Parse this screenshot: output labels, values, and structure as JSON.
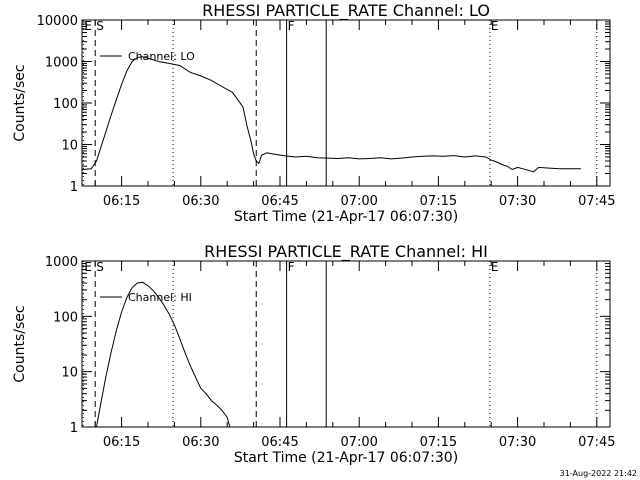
{
  "chart_data": [
    {
      "type": "line",
      "title": "RHESSI PARTICLE_RATE Channel: LO",
      "xlabel": "Start Time (21-Apr-17 06:07:30)",
      "ylabel": "Counts/sec",
      "yscale": "log",
      "ylim": [
        1,
        10000
      ],
      "ytick_labels": [
        "1",
        "10",
        "100",
        "1000",
        "10000"
      ],
      "xlim": [
        "06:07:30",
        "07:47:30"
      ],
      "xtick_labels": [
        "06:15",
        "06:30",
        "06:45",
        "07:00",
        "07:15",
        "07:30",
        "07:45"
      ],
      "legend": {
        "entry": "Channel: LO",
        "placement": "top-left"
      },
      "event_markers": [
        {
          "label": "E",
          "time": "06:07:45",
          "style": "dotted"
        },
        {
          "label": "S",
          "time": "06:10:00",
          "style": "dashed"
        },
        {
          "label": "",
          "time": "06:24:45",
          "style": "dotted"
        },
        {
          "label": "",
          "time": "06:40:30",
          "style": "dashed"
        },
        {
          "label": "F",
          "time": "06:46:15",
          "style": "solid"
        },
        {
          "label": "",
          "time": "06:53:45",
          "style": "solid"
        },
        {
          "label": "E",
          "time": "07:24:45",
          "style": "dotted"
        },
        {
          "label": "",
          "time": "07:45:00",
          "style": "dotted"
        }
      ],
      "series": [
        {
          "name": "Channel: LO",
          "x": [
            "06:07:30",
            "06:09:15",
            "06:10:15",
            "06:11:00",
            "06:12:00",
            "06:13:00",
            "06:14:00",
            "06:15:00",
            "06:16:00",
            "06:17:00",
            "06:18:00",
            "06:19:00",
            "06:20:00",
            "06:21:00",
            "06:22:00",
            "06:24:00",
            "06:26:00",
            "06:28:00",
            "06:30:00",
            "06:32:00",
            "06:34:00",
            "06:36:00",
            "06:38:00",
            "06:38:45",
            "06:39:30",
            "06:40:00",
            "06:40:30",
            "06:41:00",
            "06:41:30",
            "06:42:30",
            "06:44:00",
            "06:46:00",
            "06:48:00",
            "06:50:00",
            "06:52:00",
            "06:54:00",
            "06:56:00",
            "06:58:00",
            "07:00:00",
            "07:02:00",
            "07:04:00",
            "07:06:00",
            "07:08:00",
            "07:10:00",
            "07:12:00",
            "07:14:00",
            "07:16:00",
            "07:18:00",
            "07:20:00",
            "07:22:00",
            "07:24:00",
            "07:25:00",
            "07:26:00",
            "07:27:00",
            "07:28:00",
            "07:29:00",
            "07:30:00",
            "07:31:00",
            "07:32:00",
            "07:33:00",
            "07:34:00",
            "07:36:00",
            "07:38:00",
            "07:40:00",
            "07:42:00"
          ],
          "y": [
            2.5,
            2.6,
            4,
            8,
            20,
            50,
            120,
            280,
            600,
            1000,
            1250,
            1300,
            1200,
            1100,
            1000,
            900,
            800,
            550,
            450,
            350,
            250,
            180,
            80,
            28,
            12,
            6,
            4,
            3.5,
            5.5,
            6.3,
            5.8,
            5.3,
            5.0,
            5.2,
            4.8,
            4.7,
            4.6,
            4.8,
            4.5,
            4.6,
            4.8,
            4.5,
            4.7,
            5.0,
            5.2,
            5.3,
            5.2,
            5.4,
            5.0,
            5.3,
            5.0,
            4.2,
            3.8,
            3.3,
            3.0,
            2.5,
            2.8,
            2.6,
            2.4,
            2.2,
            2.8,
            2.7,
            2.6,
            2.6,
            2.6
          ]
        }
      ]
    },
    {
      "type": "line",
      "title": "RHESSI PARTICLE_RATE Channel: HI",
      "xlabel": "Start Time (21-Apr-17 06:07:30)",
      "ylabel": "Counts/sec",
      "yscale": "log",
      "ylim": [
        1,
        1000
      ],
      "ytick_labels": [
        "1",
        "10",
        "100",
        "1000"
      ],
      "xlim": [
        "06:07:30",
        "07:47:30"
      ],
      "xtick_labels": [
        "06:15",
        "06:30",
        "06:45",
        "07:00",
        "07:15",
        "07:30",
        "07:45"
      ],
      "legend": {
        "entry": "Channel: HI",
        "placement": "top-left"
      },
      "event_markers": [
        {
          "label": "E",
          "time": "06:07:45",
          "style": "dotted"
        },
        {
          "label": "S",
          "time": "06:10:00",
          "style": "dashed"
        },
        {
          "label": "",
          "time": "06:24:45",
          "style": "dotted"
        },
        {
          "label": "",
          "time": "06:40:30",
          "style": "dashed"
        },
        {
          "label": "F",
          "time": "06:46:15",
          "style": "solid"
        },
        {
          "label": "",
          "time": "06:53:45",
          "style": "solid"
        },
        {
          "label": "E",
          "time": "07:24:45",
          "style": "dotted"
        },
        {
          "label": "",
          "time": "07:45:00",
          "style": "dotted"
        }
      ],
      "series": [
        {
          "name": "Channel: HI",
          "x": [
            "06:10:15",
            "06:11:00",
            "06:12:00",
            "06:13:00",
            "06:14:00",
            "06:15:00",
            "06:16:00",
            "06:17:00",
            "06:18:00",
            "06:19:00",
            "06:20:00",
            "06:21:00",
            "06:22:00",
            "06:23:00",
            "06:24:00",
            "06:25:00",
            "06:26:00",
            "06:27:00",
            "06:28:00",
            "06:29:00",
            "06:30:00",
            "06:31:00",
            "06:32:00",
            "06:33:00",
            "06:34:00",
            "06:35:00",
            "06:35:30"
          ],
          "y": [
            1,
            2.5,
            8,
            22,
            55,
            120,
            220,
            330,
            400,
            410,
            360,
            290,
            220,
            160,
            110,
            70,
            40,
            22,
            13,
            8,
            5,
            4,
            3,
            2.5,
            2,
            1.5,
            1
          ]
        }
      ]
    }
  ],
  "timestamp": "31-Aug-2022 21:42"
}
